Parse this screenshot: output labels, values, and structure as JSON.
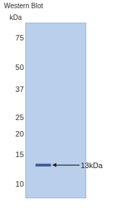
{
  "chart_data": {
    "type": "blot",
    "title": "Western Blot",
    "y_label": "kDa",
    "values": [
      13
    ],
    "value_labels": [
      "13kDa"
    ],
    "color": "#3a5a9a",
    "ylim": [
      8.3,
      92
    ],
    "yticks": [
      75,
      50,
      37,
      25,
      20,
      15,
      10
    ],
    "log": "y",
    "data_labels": true
  }
}
